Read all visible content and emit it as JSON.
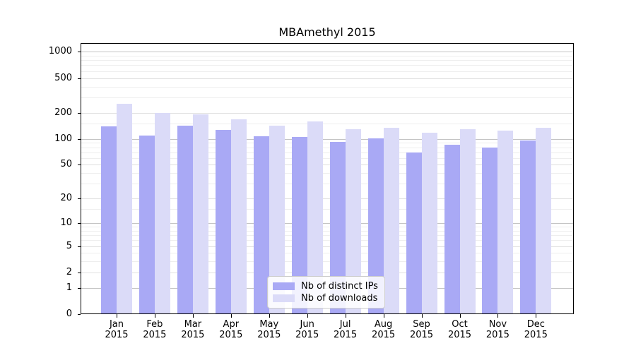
{
  "title": "MBAmethyl 2015",
  "chart_data": {
    "type": "bar",
    "title": "MBAmethyl 2015",
    "months": [
      "Jan",
      "Feb",
      "Mar",
      "Apr",
      "May",
      "Jun",
      "Jul",
      "Aug",
      "Sep",
      "Oct",
      "Nov",
      "Dec"
    ],
    "year": "2015",
    "series": [
      {
        "name": "Nb of distinct IPs",
        "color": "#a9a9f5",
        "values": [
          140,
          110,
          143,
          127,
          107,
          106,
          93,
          101,
          70,
          86,
          79,
          96
        ]
      },
      {
        "name": "Nb of downloads",
        "color": "#dbdbf8",
        "values": [
          255,
          200,
          190,
          168,
          142,
          158,
          129,
          134,
          117,
          130,
          124,
          134
        ]
      }
    ],
    "y_ticks": [
      0,
      1,
      2,
      5,
      10,
      20,
      50,
      100,
      200,
      500,
      1000
    ],
    "y_minor_ticks": [
      3,
      4,
      6,
      7,
      8,
      9,
      15,
      30,
      40,
      60,
      70,
      80,
      90,
      150,
      300,
      400,
      600,
      700,
      800,
      900
    ],
    "y_scale": "log10(1+v)",
    "ylim": [
      0,
      1040
    ],
    "grid": true,
    "legend_position": "inside lower-center",
    "axis_color": "#000000",
    "grid_major_color": "#c4c4c4",
    "grid_minor_color": "#eeeeee"
  }
}
